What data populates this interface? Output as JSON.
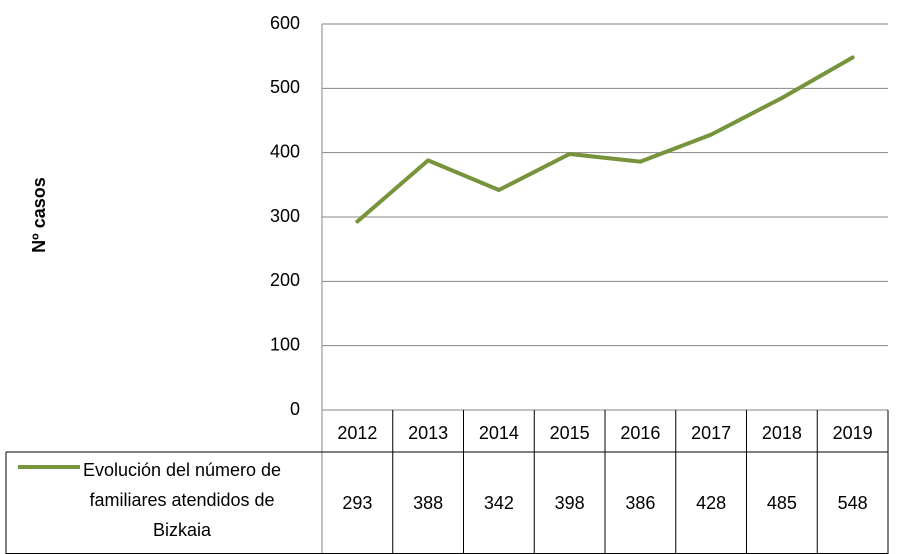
{
  "chart_data": {
    "type": "line",
    "y_label": "Nº casos",
    "categories": [
      "2012",
      "2013",
      "2014",
      "2015",
      "2016",
      "2017",
      "2018",
      "2019"
    ],
    "series": [
      {
        "name": "Evolución del número de familiares atendidos de Bizkaia",
        "color": "#77933c",
        "values": [
          293,
          388,
          342,
          398,
          386,
          428,
          485,
          548
        ]
      }
    ],
    "ylim": [
      0,
      600
    ],
    "yticks": [
      0,
      100,
      200,
      300,
      400,
      500,
      600
    ],
    "grid": true,
    "data_table": true
  }
}
